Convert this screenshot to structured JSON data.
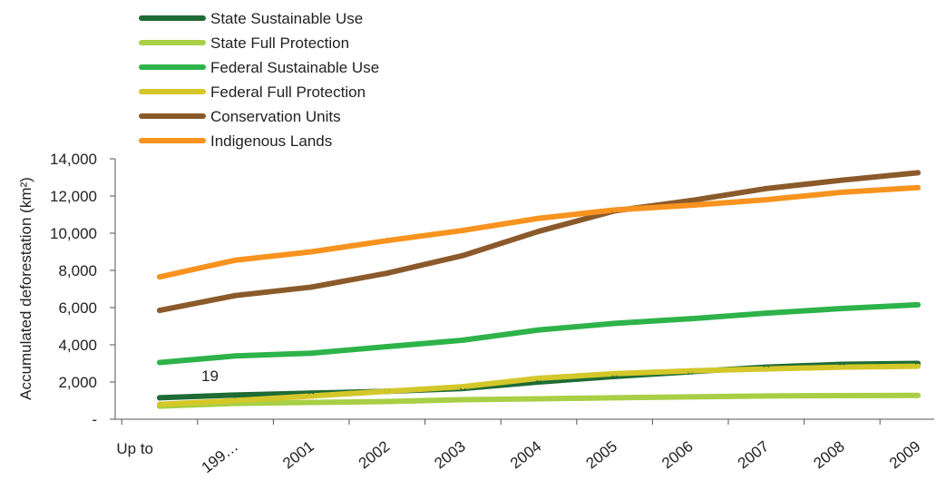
{
  "chart_data": {
    "type": "line",
    "title": "",
    "xlabel": "",
    "ylabel": "Accumulated deforestation (km²)",
    "categories": [
      "Up to",
      "199…",
      "2001",
      "2002",
      "2003",
      "2004",
      "2005",
      "2006",
      "2007",
      "2008",
      "2009"
    ],
    "y_tick_labels": [
      "-",
      "2,000",
      "4,000",
      "6,000",
      "8,000",
      "10,000",
      "12,000",
      "14,000"
    ],
    "ylim": [
      0,
      14000
    ],
    "grid": false,
    "legend_position": "top-left",
    "annotation": "19",
    "series": [
      {
        "name": "State Sustainable Use",
        "color": "#1e6b35",
        "values": [
          1150,
          1300,
          1400,
          1500,
          1650,
          2000,
          2300,
          2550,
          2800,
          2950,
          3000
        ]
      },
      {
        "name": "State Full Protection",
        "color": "#a8cf45",
        "values": [
          700,
          850,
          900,
          950,
          1050,
          1100,
          1150,
          1200,
          1250,
          1270,
          1280
        ]
      },
      {
        "name": "Federal Sustainable Use",
        "color": "#2db34a",
        "values": [
          3050,
          3400,
          3550,
          3900,
          4250,
          4800,
          5150,
          5400,
          5700,
          5950,
          6150
        ]
      },
      {
        "name": "Federal Full Protection",
        "color": "#d4c72a",
        "values": [
          800,
          1000,
          1250,
          1500,
          1750,
          2200,
          2450,
          2600,
          2700,
          2800,
          2850
        ]
      },
      {
        "name": "Conservation Units",
        "color": "#8b5a2b",
        "values": [
          5850,
          6650,
          7100,
          7850,
          8800,
          10100,
          11200,
          11750,
          12400,
          12850,
          13250
        ]
      },
      {
        "name": "Indigenous Lands",
        "color": "#f7931e",
        "values": [
          7650,
          8550,
          9000,
          9600,
          10150,
          10800,
          11250,
          11500,
          11800,
          12200,
          12450
        ]
      }
    ]
  }
}
